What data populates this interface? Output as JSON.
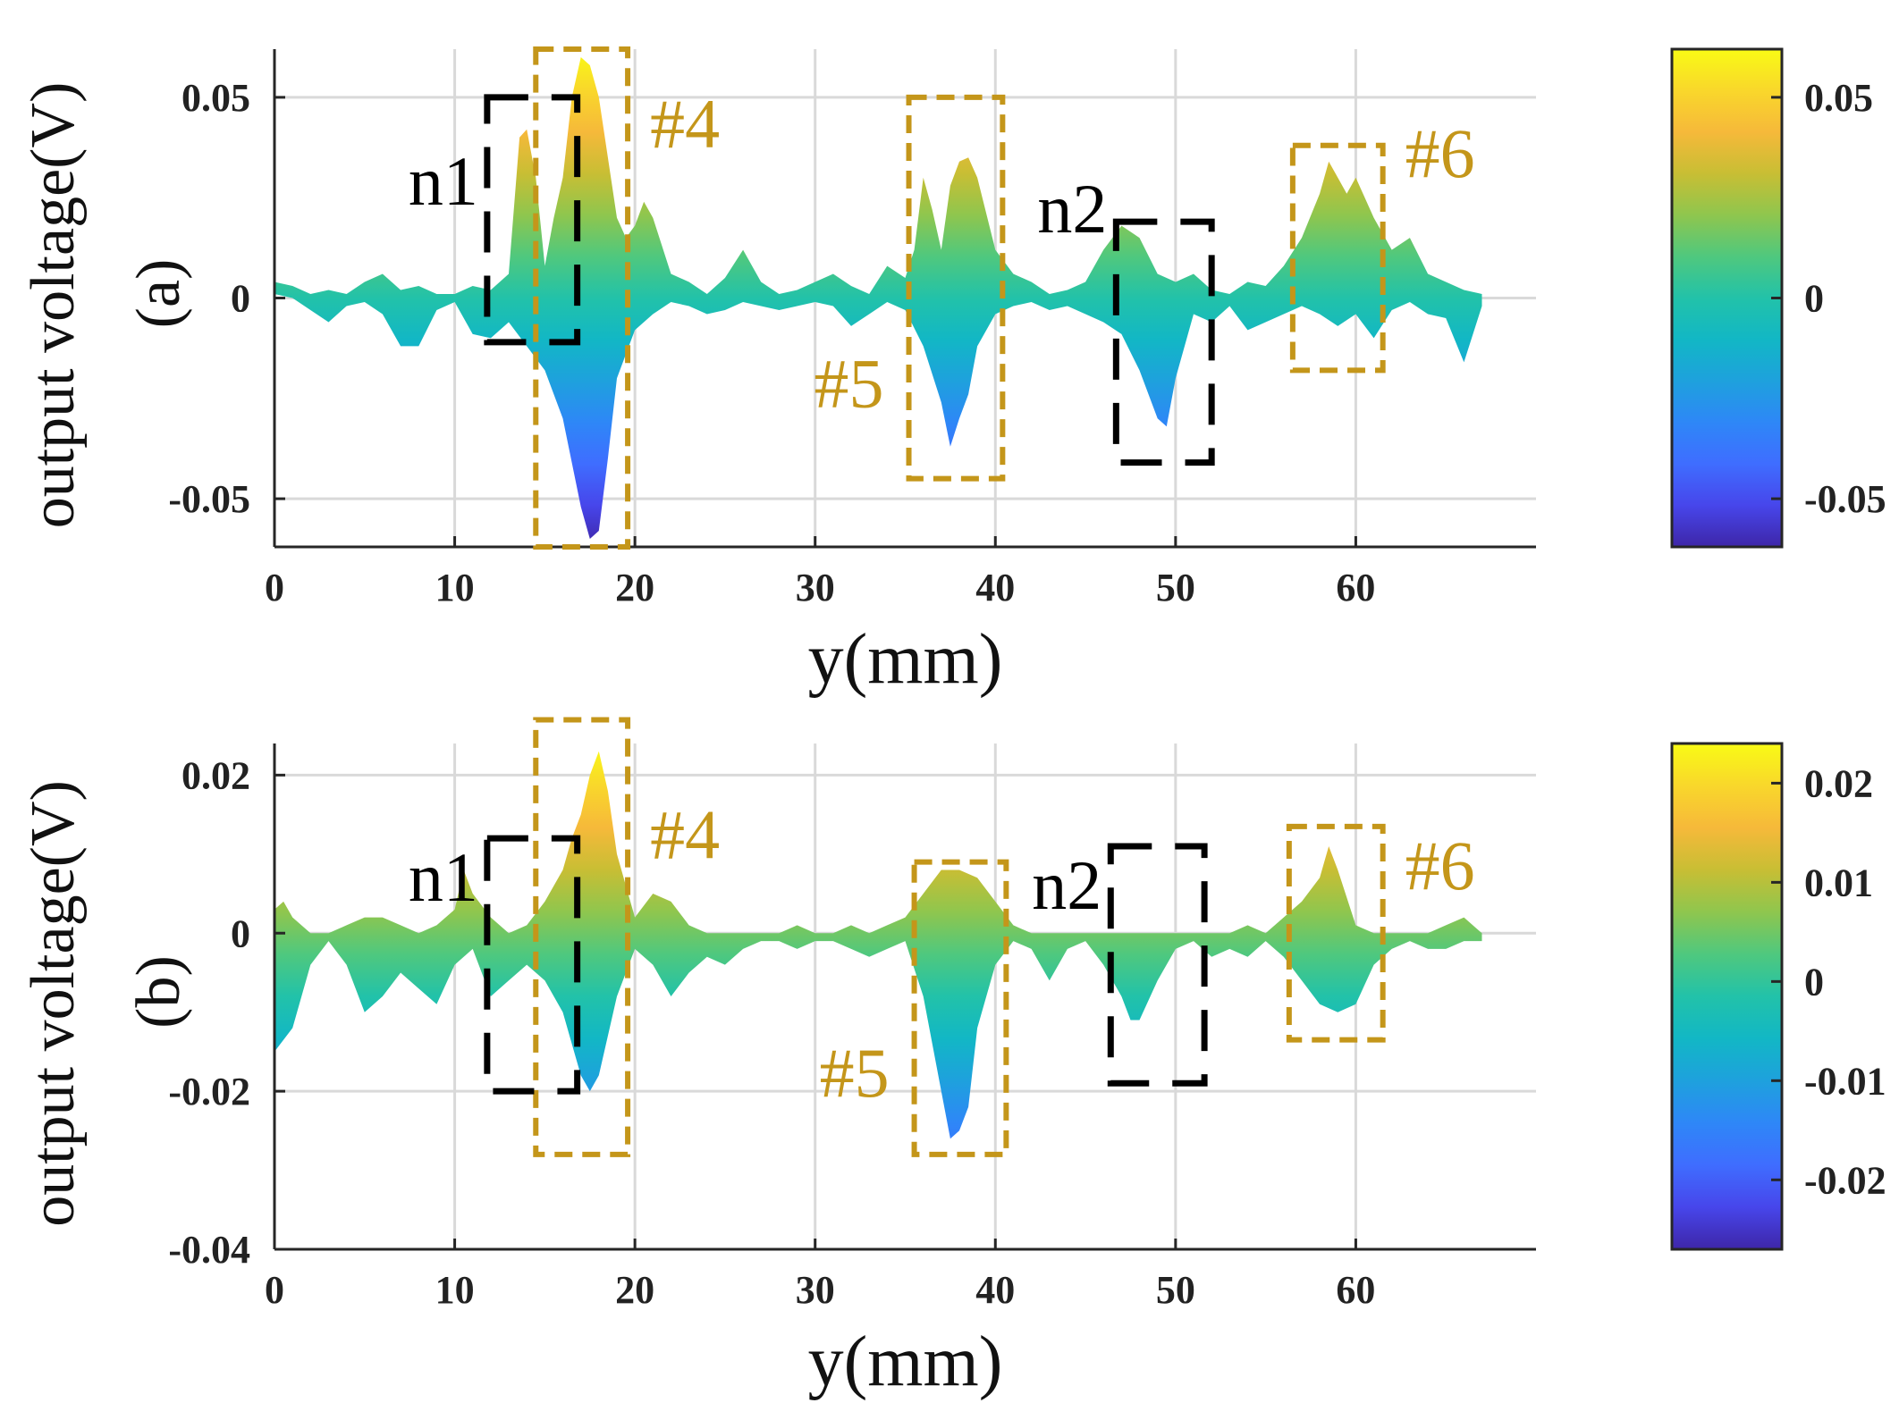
{
  "colors": {
    "defect_box": "#C4961A",
    "noise_box": "#000000",
    "grid": "#d9d9d9",
    "axis": "#262626"
  },
  "chart_data": [
    {
      "type": "area",
      "panel_label": "(a)",
      "xlabel": "y(mm)",
      "ylabel": "output voltage(V)",
      "xlim": [
        0,
        70
      ],
      "ylim": [
        -0.062,
        0.062
      ],
      "xticks": [
        0,
        10,
        20,
        30,
        40,
        50,
        60
      ],
      "yticks": [
        0.05,
        0,
        -0.05
      ],
      "ytick_labels": [
        "0.05",
        "0",
        "-0.05"
      ],
      "grid": true,
      "colorbar": {
        "range": [
          -0.062,
          0.062
        ],
        "ticks": [
          "0.05",
          "0",
          "-0.05"
        ],
        "tick_values": [
          0.05,
          0,
          -0.05
        ]
      },
      "upper": {
        "x": [
          0,
          1,
          2,
          3,
          4,
          5,
          6,
          7,
          8,
          9,
          10,
          11,
          12,
          13,
          13.6,
          14,
          14.5,
          15,
          15.5,
          16,
          16.5,
          17,
          17.5,
          18,
          18.5,
          19,
          19.5,
          20,
          20.5,
          21,
          22,
          23,
          24,
          25,
          26,
          27,
          28,
          29,
          30,
          31,
          32,
          33,
          34,
          35,
          35.5,
          36,
          36.5,
          37,
          37.5,
          38,
          38.5,
          39,
          40,
          41,
          42,
          43,
          44,
          45,
          46,
          47,
          48,
          49,
          50,
          51,
          52,
          53,
          54,
          55,
          56,
          57,
          58,
          58.5,
          59,
          59.5,
          60,
          61,
          62,
          63,
          64,
          65,
          66,
          67
        ],
        "values": [
          0.004,
          0.003,
          0.001,
          0.002,
          0.001,
          0.004,
          0.006,
          0.002,
          0.003,
          0.001,
          0.001,
          0.003,
          0.002,
          0.006,
          0.04,
          0.042,
          0.03,
          0.008,
          0.02,
          0.03,
          0.05,
          0.06,
          0.058,
          0.05,
          0.035,
          0.02,
          0.015,
          0.018,
          0.024,
          0.02,
          0.006,
          0.004,
          0.001,
          0.005,
          0.012,
          0.004,
          0.001,
          0.002,
          0.004,
          0.006,
          0.003,
          0.001,
          0.008,
          0.005,
          0.012,
          0.03,
          0.022,
          0.012,
          0.028,
          0.034,
          0.035,
          0.03,
          0.012,
          0.006,
          0.004,
          0.001,
          0.002,
          0.004,
          0.012,
          0.018,
          0.015,
          0.006,
          0.004,
          0.006,
          0.002,
          0.001,
          0.004,
          0.003,
          0.008,
          0.015,
          0.026,
          0.034,
          0.03,
          0.026,
          0.03,
          0.02,
          0.012,
          0.015,
          0.006,
          0.004,
          0.002,
          0.001
        ]
      },
      "lower": {
        "x": [
          0,
          1,
          2,
          3,
          4,
          5,
          6,
          7,
          8,
          9,
          10,
          11,
          12,
          13,
          14,
          15,
          16,
          17,
          17.5,
          18,
          18.5,
          19,
          20,
          21,
          22,
          23,
          24,
          25,
          26,
          27,
          28,
          29,
          30,
          31,
          32,
          33,
          34,
          35,
          36,
          37,
          37.5,
          38,
          38.5,
          39,
          40,
          41,
          42,
          43,
          44,
          45,
          46,
          47,
          48,
          49,
          49.5,
          50,
          51,
          52,
          53,
          54,
          55,
          56,
          57,
          58,
          59,
          60,
          61,
          62,
          63,
          64,
          65,
          66,
          67
        ],
        "values": [
          0.001,
          0.0,
          -0.003,
          -0.006,
          -0.002,
          -0.001,
          -0.004,
          -0.012,
          -0.012,
          -0.003,
          -0.001,
          -0.009,
          -0.01,
          -0.006,
          -0.012,
          -0.018,
          -0.03,
          -0.052,
          -0.06,
          -0.058,
          -0.04,
          -0.02,
          -0.008,
          -0.004,
          -0.001,
          -0.002,
          -0.004,
          -0.003,
          -0.001,
          -0.002,
          -0.003,
          -0.002,
          -0.001,
          -0.002,
          -0.007,
          -0.004,
          -0.001,
          -0.003,
          -0.012,
          -0.026,
          -0.037,
          -0.03,
          -0.024,
          -0.012,
          -0.004,
          -0.002,
          -0.001,
          -0.003,
          -0.002,
          -0.004,
          -0.006,
          -0.009,
          -0.018,
          -0.03,
          -0.032,
          -0.02,
          -0.004,
          -0.006,
          -0.002,
          -0.008,
          -0.006,
          -0.004,
          -0.002,
          -0.004,
          -0.007,
          -0.004,
          -0.01,
          -0.003,
          -0.001,
          -0.004,
          -0.005,
          -0.016,
          -0.002
        ]
      },
      "annotations": [
        {
          "text": "#4",
          "kind": "defect",
          "box_x": [
            14.5,
            19.6
          ],
          "box_y": [
            -0.062,
            0.062
          ]
        },
        {
          "text": "#5",
          "kind": "defect",
          "box_x": [
            35.2,
            40.4
          ],
          "box_y": [
            -0.045,
            0.05
          ]
        },
        {
          "text": "#6",
          "kind": "defect",
          "box_x": [
            56.5,
            61.5
          ],
          "box_y": [
            -0.018,
            0.038
          ]
        },
        {
          "text": "n1",
          "kind": "noise",
          "box_x": [
            11.8,
            16.8
          ],
          "box_y": [
            -0.011,
            0.05
          ]
        },
        {
          "text": "n2",
          "kind": "noise",
          "box_x": [
            46.7,
            52.0
          ],
          "box_y": [
            -0.041,
            0.019
          ]
        }
      ]
    },
    {
      "type": "area",
      "panel_label": "(b)",
      "xlabel": "y(mm)",
      "ylabel": "output voltage(V)",
      "xlim": [
        0,
        70
      ],
      "ylim": [
        -0.04,
        0.024
      ],
      "xticks": [
        0,
        10,
        20,
        30,
        40,
        50,
        60
      ],
      "yticks": [
        0.02,
        0,
        -0.02,
        -0.04
      ],
      "ytick_labels": [
        "0.02",
        "0",
        "-0.02",
        "-0.04"
      ],
      "grid": true,
      "colorbar": {
        "range": [
          -0.027,
          0.024
        ],
        "ticks": [
          "0.02",
          "0.01",
          "0",
          "-0.01",
          "-0.02"
        ],
        "tick_values": [
          0.02,
          0.01,
          0,
          -0.01,
          -0.02
        ]
      },
      "upper": {
        "x": [
          0,
          0.5,
          1,
          2,
          3,
          4,
          5,
          6,
          7,
          8,
          9,
          10,
          10.5,
          11,
          12,
          13,
          14,
          15,
          16,
          16.5,
          17,
          17.5,
          18,
          18.5,
          19,
          20,
          21,
          22,
          23,
          24,
          25,
          26,
          27,
          28,
          29,
          30,
          31,
          32,
          33,
          34,
          35,
          36,
          37,
          38,
          39,
          40,
          41,
          42,
          43,
          44,
          45,
          46,
          47,
          48,
          49,
          50,
          51,
          52,
          53,
          54,
          55,
          56,
          57,
          58,
          58.5,
          59,
          60,
          61,
          62,
          63,
          64,
          65,
          66,
          67
        ],
        "values": [
          0.003,
          0.004,
          0.002,
          0.0,
          0.0,
          0.001,
          0.002,
          0.002,
          0.001,
          0.0,
          0.001,
          0.003,
          0.008,
          0.005,
          0.002,
          0.0,
          0.001,
          0.004,
          0.008,
          0.012,
          0.015,
          0.02,
          0.023,
          0.018,
          0.01,
          0.002,
          0.005,
          0.004,
          0.001,
          0.0,
          0.0,
          0.0,
          0.0,
          0.0,
          0.001,
          0.0,
          0.0,
          0.001,
          0.0,
          0.001,
          0.002,
          0.005,
          0.008,
          0.008,
          0.007,
          0.004,
          0.001,
          0.0,
          0.0,
          0.0,
          0.0,
          0.0,
          0.0,
          0.0,
          0.0,
          0.0,
          0.0,
          0.0,
          0.0,
          0.001,
          0.0,
          0.002,
          0.004,
          0.007,
          0.011,
          0.008,
          0.001,
          0.0,
          0.0,
          0.0,
          0.0,
          0.001,
          0.002,
          0.0
        ]
      },
      "lower": {
        "x": [
          0,
          1,
          2,
          3,
          4,
          5,
          6,
          7,
          8,
          9,
          10,
          11,
          12,
          13,
          14,
          15,
          16,
          16.5,
          17,
          17.5,
          18,
          19,
          20,
          21,
          22,
          23,
          24,
          25,
          26,
          27,
          28,
          29,
          30,
          31,
          32,
          33,
          34,
          35,
          36,
          37,
          37.5,
          38,
          38.5,
          39,
          40,
          41,
          42,
          43,
          44,
          45,
          46,
          47,
          47.5,
          48,
          49,
          50,
          51,
          52,
          53,
          54,
          55,
          56,
          57,
          58,
          59,
          60,
          61,
          62,
          63,
          64,
          65,
          66,
          67
        ],
        "values": [
          -0.015,
          -0.012,
          -0.004,
          -0.001,
          -0.004,
          -0.01,
          -0.008,
          -0.005,
          -0.007,
          -0.009,
          -0.004,
          -0.002,
          -0.008,
          -0.006,
          -0.004,
          -0.006,
          -0.01,
          -0.014,
          -0.018,
          -0.02,
          -0.018,
          -0.008,
          -0.002,
          -0.004,
          -0.008,
          -0.005,
          -0.003,
          -0.004,
          -0.002,
          -0.001,
          -0.001,
          -0.002,
          -0.001,
          -0.001,
          -0.002,
          -0.003,
          -0.002,
          -0.001,
          -0.008,
          -0.02,
          -0.026,
          -0.025,
          -0.022,
          -0.012,
          -0.004,
          -0.001,
          -0.002,
          -0.006,
          -0.002,
          -0.001,
          -0.004,
          -0.008,
          -0.011,
          -0.011,
          -0.006,
          -0.002,
          -0.001,
          -0.003,
          -0.002,
          -0.003,
          -0.001,
          -0.003,
          -0.006,
          -0.009,
          -0.01,
          -0.009,
          -0.004,
          -0.002,
          -0.001,
          -0.002,
          -0.002,
          -0.001,
          -0.001
        ]
      },
      "annotations": [
        {
          "text": "#4",
          "kind": "defect",
          "box_x": [
            14.5,
            19.6
          ],
          "box_y": [
            -0.028,
            0.027
          ]
        },
        {
          "text": "#5",
          "kind": "defect",
          "box_x": [
            35.5,
            40.6
          ],
          "box_y": [
            -0.028,
            0.009
          ]
        },
        {
          "text": "#6",
          "kind": "defect",
          "box_x": [
            56.3,
            61.5
          ],
          "box_y": [
            -0.0135,
            0.0135
          ]
        },
        {
          "text": "n1",
          "kind": "noise",
          "box_x": [
            11.8,
            16.8
          ],
          "box_y": [
            -0.02,
            0.012
          ]
        },
        {
          "text": "n2",
          "kind": "noise",
          "box_x": [
            46.4,
            51.6
          ],
          "box_y": [
            -0.019,
            0.011
          ]
        }
      ]
    }
  ]
}
